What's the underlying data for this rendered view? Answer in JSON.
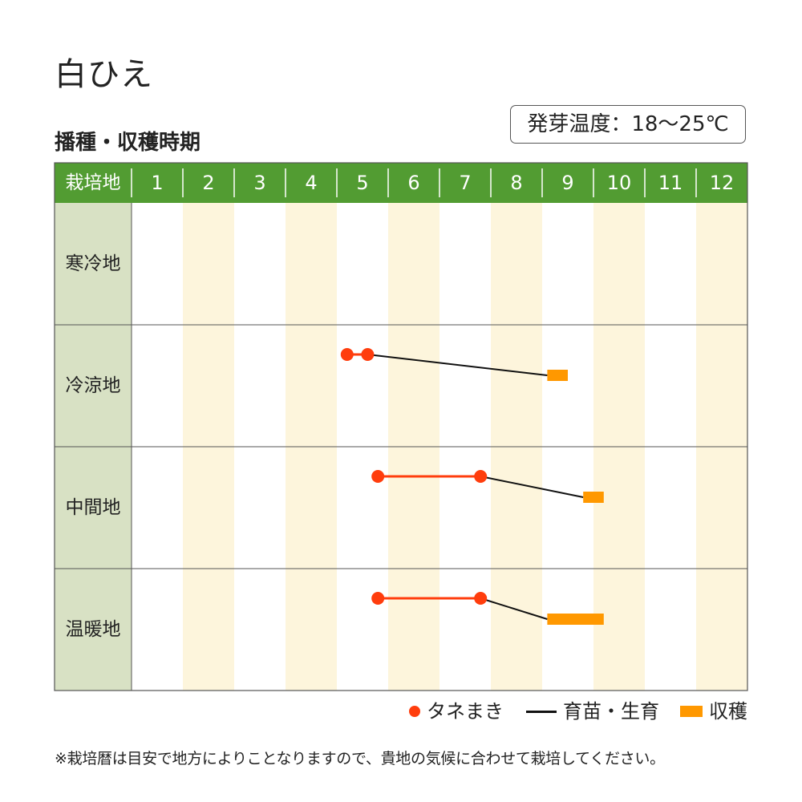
{
  "title": "白ひえ",
  "subtitle": "播種・収穫時期",
  "badge": "発芽温度：18〜25℃",
  "chart_data": {
    "type": "table",
    "header_label": "栽培地",
    "months": [
      "1",
      "2",
      "3",
      "4",
      "5",
      "6",
      "7",
      "8",
      "9",
      "10",
      "11",
      "12"
    ],
    "regions": [
      {
        "name": "寒冷地",
        "sowing": [],
        "harvest": []
      },
      {
        "name": "冷涼地",
        "sowing": [
          5.2,
          5.6
        ],
        "harvest": [
          9.1,
          9.5
        ]
      },
      {
        "name": "中間地",
        "sowing": [
          5.8,
          7.8
        ],
        "harvest": [
          9.8,
          10.2
        ]
      },
      {
        "name": "温暖地",
        "sowing": [
          5.8,
          7.8
        ],
        "harvest": [
          9.1,
          10.2
        ]
      }
    ]
  },
  "legend": {
    "sowing": "タネまき",
    "growing": "育苗・生育",
    "harvest": "収穫"
  },
  "colors": {
    "header_green": "#529c32",
    "region_col": "#d8e1c4",
    "alt_stripe": "#fdf5dc",
    "sowing": "#ff3d0d",
    "growing": "#111111",
    "harvest": "#ff9800"
  },
  "footnote": "※栽培暦は目安で地方によりことなりますので、貴地の気候に合わせて栽培してください。"
}
